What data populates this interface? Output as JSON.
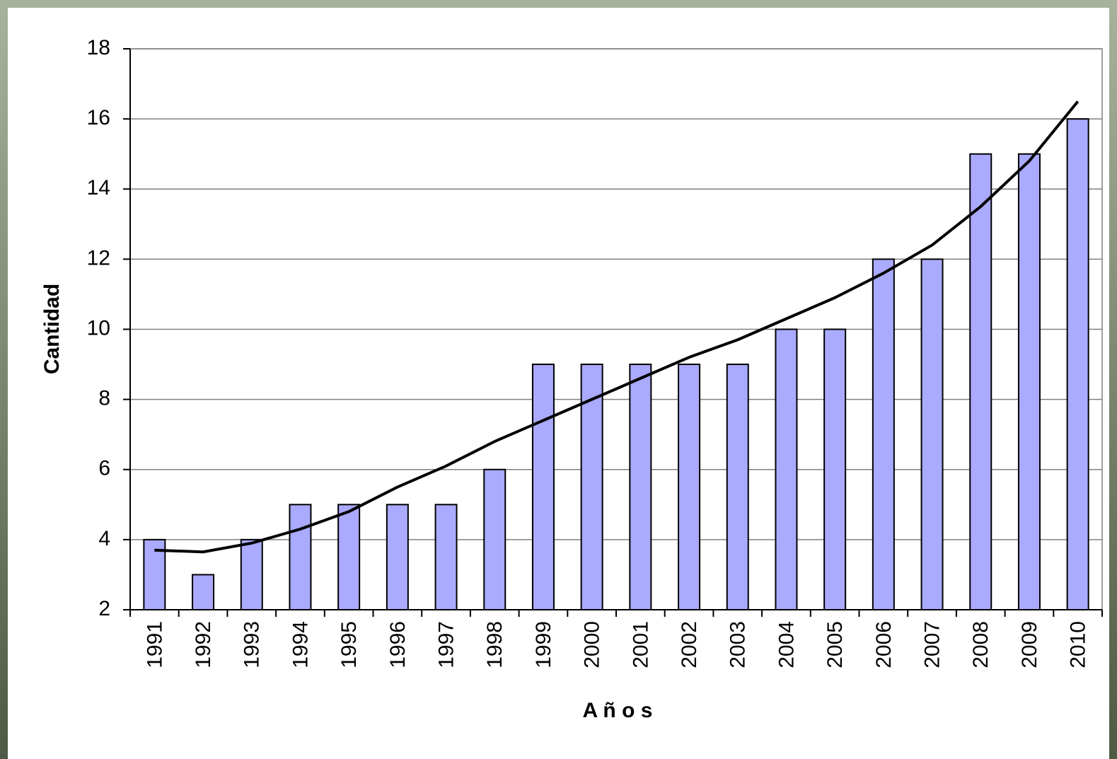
{
  "chart_data": {
    "type": "bar",
    "x_label": "A ñ o s",
    "y_label": "Cantidad",
    "categories": [
      "1991",
      "1992",
      "1993",
      "1994",
      "1995",
      "1996",
      "1997",
      "1998",
      "1999",
      "2000",
      "2001",
      "2002",
      "2003",
      "2004",
      "2005",
      "2006",
      "2007",
      "2008",
      "2009",
      "2010"
    ],
    "values": [
      4,
      3,
      4,
      5,
      5,
      5,
      5,
      6,
      9,
      9,
      9,
      9,
      9,
      10,
      10,
      12,
      12,
      15,
      15,
      16
    ],
    "color": "#aaaaff",
    "trend": {
      "color": "#000000",
      "values": [
        3.7,
        3.65,
        3.9,
        4.3,
        4.8,
        5.5,
        6.1,
        6.8,
        7.4,
        8.0,
        8.6,
        9.2,
        9.7,
        10.3,
        10.9,
        11.6,
        12.4,
        13.5,
        14.8,
        16.5
      ]
    },
    "ylim": [
      2,
      18
    ],
    "yticks": [
      2,
      4,
      6,
      8,
      10,
      12,
      14,
      16,
      18
    ],
    "grid": true
  }
}
